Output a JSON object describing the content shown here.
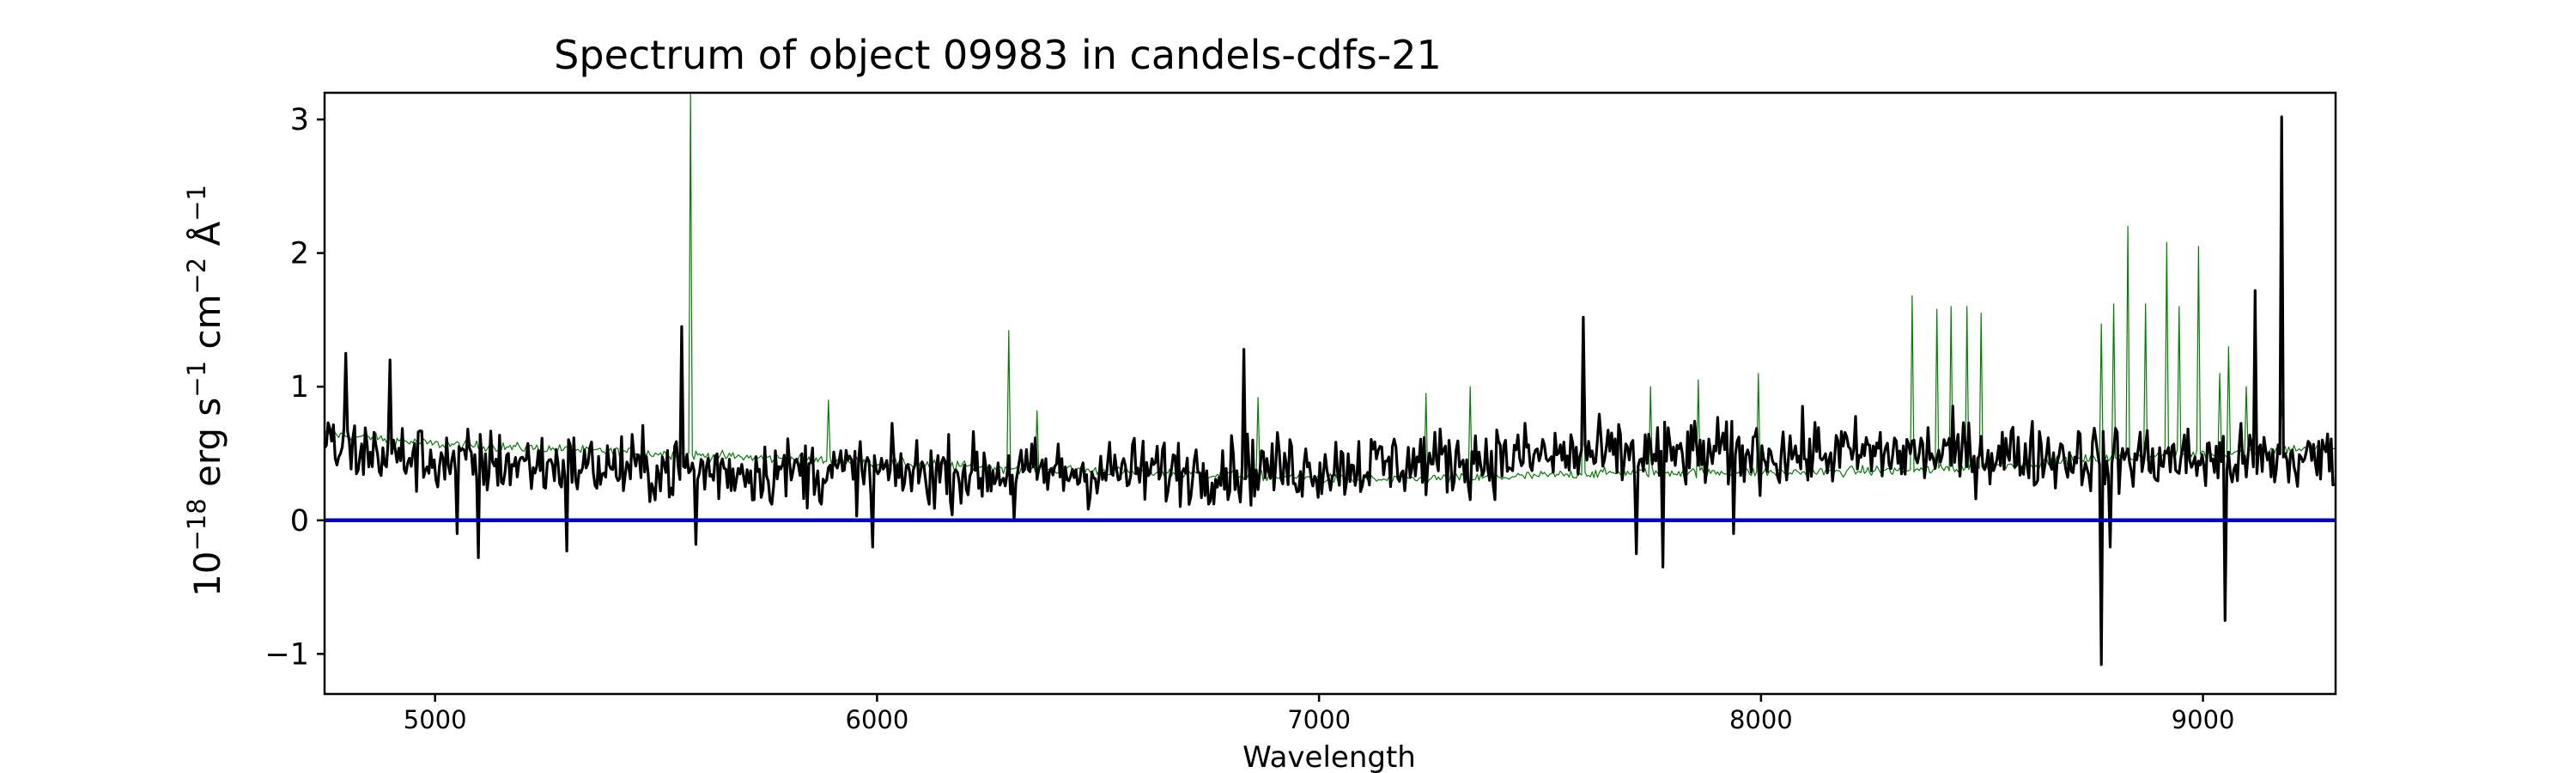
{
  "chart_data": {
    "type": "line",
    "title": "Spectrum of object 09983 in candels-cdfs-21",
    "xlabel": "Wavelength",
    "ylabel": {
      "base": "10",
      "base_exp": "−18",
      "unit1": " erg s",
      "unit1_exp": "−1",
      "unit2": " cm",
      "unit2_exp": "−2",
      "unit3": " Å",
      "unit3_exp": "−1"
    },
    "xlim": [
      4750,
      9300
    ],
    "ylim": [
      -1.3,
      3.2
    ],
    "xticks": [
      5000,
      6000,
      7000,
      8000,
      9000
    ],
    "xtick_labels": [
      "5000",
      "6000",
      "7000",
      "8000",
      "9000"
    ],
    "yticks": [
      -1,
      0,
      1,
      2,
      3
    ],
    "ytick_labels": [
      "−1",
      "0",
      "1",
      "2",
      "3"
    ],
    "grid": false,
    "series": [
      {
        "color": "#008000",
        "width": 1.2,
        "baseline": [
          [
            4750,
            0.65
          ],
          [
            5000,
            0.57
          ],
          [
            5500,
            0.5
          ],
          [
            6000,
            0.43
          ],
          [
            6500,
            0.37
          ],
          [
            6900,
            0.33
          ],
          [
            7100,
            0.3
          ],
          [
            7400,
            0.32
          ],
          [
            7700,
            0.36
          ],
          [
            8100,
            0.36
          ],
          [
            8400,
            0.38
          ],
          [
            8700,
            0.45
          ],
          [
            9000,
            0.5
          ],
          [
            9300,
            0.55
          ]
        ],
        "noise": 0.035,
        "spikes": [
          [
            5578,
            3.2
          ],
          [
            5892,
            0.9
          ],
          [
            6300,
            1.42
          ],
          [
            6364,
            0.82
          ],
          [
            6863,
            0.92
          ],
          [
            7244,
            0.95
          ],
          [
            7341,
            1.0
          ],
          [
            7600,
            1.25
          ],
          [
            7750,
            1.0
          ],
          [
            7860,
            1.05
          ],
          [
            7995,
            1.1
          ],
          [
            8344,
            1.68
          ],
          [
            8400,
            1.58
          ],
          [
            8430,
            1.6
          ],
          [
            8465,
            1.6
          ],
          [
            8500,
            1.55
          ],
          [
            8770,
            1.47
          ],
          [
            8800,
            1.62
          ],
          [
            8830,
            2.2
          ],
          [
            8870,
            1.62
          ],
          [
            8920,
            2.08
          ],
          [
            8945,
            1.6
          ],
          [
            8990,
            2.05
          ],
          [
            9040,
            1.1
          ],
          [
            9060,
            1.3
          ],
          [
            9100,
            1.0
          ],
          [
            9180,
            0.9
          ]
        ]
      },
      {
        "color": "#000000",
        "width": 3.2,
        "baseline": [
          [
            4750,
            0.55
          ],
          [
            5000,
            0.45
          ],
          [
            5500,
            0.38
          ],
          [
            6000,
            0.36
          ],
          [
            6500,
            0.36
          ],
          [
            7000,
            0.4
          ],
          [
            7500,
            0.48
          ],
          [
            8000,
            0.5
          ],
          [
            8500,
            0.5
          ],
          [
            9000,
            0.45
          ],
          [
            9300,
            0.45
          ]
        ],
        "noise": 0.24,
        "spikes": [
          [
            4800,
            1.25
          ],
          [
            4900,
            1.2
          ],
          [
            5050,
            -0.1
          ],
          [
            5100,
            -0.28
          ],
          [
            5300,
            -0.23
          ],
          [
            5560,
            1.45
          ],
          [
            5590,
            -0.18
          ],
          [
            5990,
            -0.2
          ],
          [
            6310,
            0.0
          ],
          [
            6830,
            1.28
          ],
          [
            7600,
            1.52
          ],
          [
            7720,
            -0.25
          ],
          [
            7780,
            -0.35
          ],
          [
            7940,
            -0.1
          ],
          [
            8770,
            -1.08
          ],
          [
            8790,
            -0.2
          ],
          [
            9050,
            -0.75
          ],
          [
            9120,
            1.72
          ],
          [
            9180,
            3.02
          ],
          [
            9270,
            0.6
          ]
        ]
      },
      {
        "color": "#0000cd",
        "width": 4.5,
        "points": [
          [
            4750,
            0
          ],
          [
            9300,
            0
          ]
        ]
      }
    ]
  }
}
